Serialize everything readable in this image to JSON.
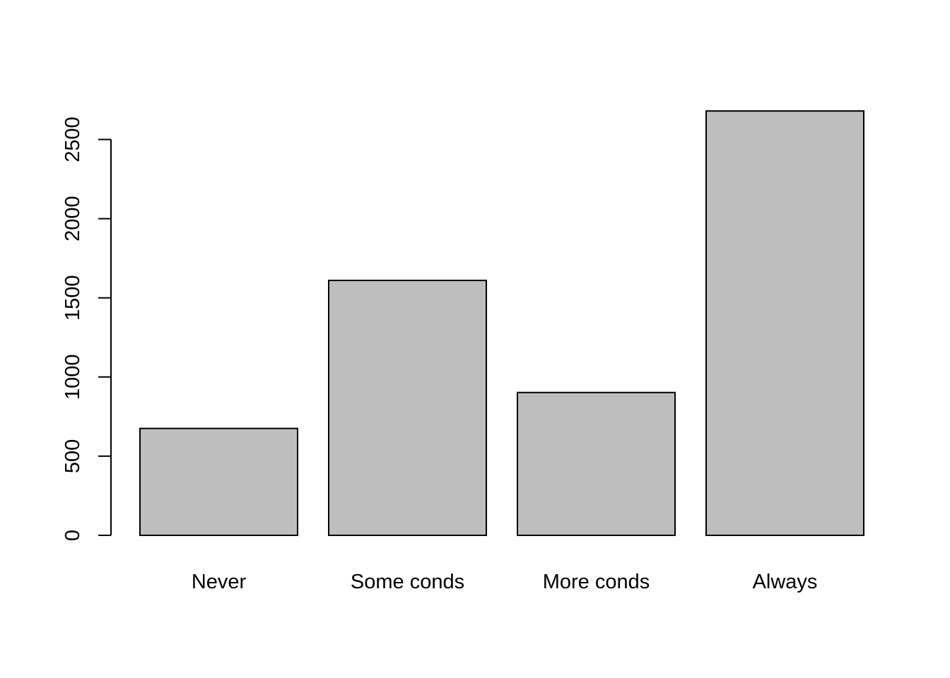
{
  "chart_data": {
    "type": "bar",
    "categories": [
      "Never",
      "Some conds",
      "More conds",
      "Always"
    ],
    "values": [
      675,
      1610,
      902,
      2680
    ],
    "title": "",
    "xlabel": "",
    "ylabel": "",
    "ylim": [
      0,
      2680
    ],
    "yticks": [
      0,
      500,
      1000,
      1500,
      2000,
      2500
    ],
    "grid": false,
    "bar_color": "#bebebe",
    "border_color": "#000000"
  }
}
